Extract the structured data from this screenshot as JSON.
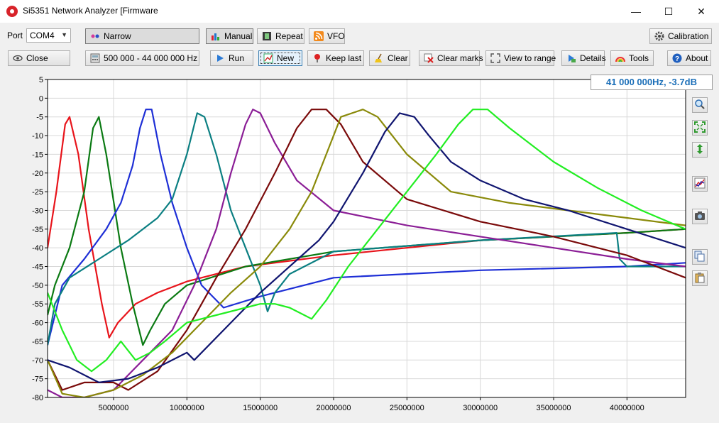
{
  "window": {
    "title": "Si5351 Network Analyzer [Firmware",
    "minimize": "—",
    "maximize": "☐",
    "close": "✕"
  },
  "toolbar": {
    "port_label": "Port",
    "port_value": "COM4",
    "narrow_label": "Narrow",
    "manual_label": "Manual",
    "repeat_label": "Repeat",
    "vfo_label": "VFO",
    "calibration_label": "Calibration",
    "close_label": "Close",
    "range_label": "500 000 - 44 000 000 Hz",
    "run_label": "Run",
    "new_label": "New",
    "keep_last_label": "Keep last",
    "clear_label": "Clear",
    "clear_marks_label": "Clear marks",
    "view_to_range_label": "View to range",
    "details_label": "Details",
    "tools_label": "Tools",
    "about_label": "About"
  },
  "readout": "41 000 000Hz, -3.7dB",
  "side_tools": [
    "zoom-icon",
    "fit-view-icon",
    "vertical-scale-icon",
    "color-chart-icon",
    "camera-icon",
    "copy-icon",
    "paste-icon"
  ],
  "chart_data": {
    "type": "line",
    "title": "",
    "xlabel": "",
    "ylabel": "",
    "xlim": [
      500000,
      44000000
    ],
    "ylim": [
      -80,
      5
    ],
    "y_ticks": [
      5,
      0,
      -5,
      -10,
      -15,
      -20,
      -25,
      -30,
      -35,
      -40,
      -45,
      -50,
      -55,
      -60,
      -65,
      -70,
      -75,
      -80
    ],
    "x_ticks": [
      5000000,
      10000000,
      15000000,
      20000000,
      25000000,
      30000000,
      35000000,
      40000000
    ],
    "grid": true,
    "series": [
      {
        "color": "#e8141b",
        "x": [
          500000,
          1100000,
          1700000,
          2000000,
          2600000,
          3300000,
          4200000,
          4700000,
          5300000,
          6500000,
          8000000,
          10000000,
          14000000,
          20000000,
          30000000,
          40000000,
          44000000
        ],
        "y": [
          -40,
          -25,
          -7,
          -5,
          -15,
          -35,
          -55,
          -64,
          -60,
          -55,
          -52,
          -49,
          -45,
          -42,
          -38,
          -36,
          -35
        ]
      },
      {
        "color": "#0b7a13",
        "x": [
          500000,
          1000000,
          2000000,
          3000000,
          3600000,
          4000000,
          4500000,
          5500000,
          6300000,
          7000000,
          7500000,
          8500000,
          10000000,
          14000000,
          20000000,
          30000000,
          40000000,
          44000000
        ],
        "y": [
          -58,
          -50,
          -40,
          -25,
          -8,
          -5,
          -15,
          -40,
          -55,
          -66,
          -62,
          -55,
          -50,
          -45,
          -41,
          -38,
          -36,
          -35
        ]
      },
      {
        "color": "#1e2fd6",
        "x": [
          500000,
          1500000,
          3000000,
          4500000,
          5500000,
          6300000,
          6800000,
          7200000,
          7600000,
          8200000,
          9000000,
          10000000,
          11000000,
          12500000,
          15000000,
          20000000,
          30000000,
          40000000,
          44000000
        ],
        "y": [
          -66,
          -50,
          -43,
          -35,
          -28,
          -18,
          -8,
          -3,
          -3,
          -15,
          -28,
          -40,
          -50,
          -56,
          -53,
          -48,
          -46,
          -45,
          -44
        ]
      },
      {
        "color": "#0b7f82",
        "x": [
          500000,
          1000000,
          2000000,
          4000000,
          6000000,
          8000000,
          9000000,
          10000000,
          10700000,
          11200000,
          12000000,
          13000000,
          14000000,
          15000000,
          15500000,
          16000000,
          17000000,
          20000000,
          30000000,
          39300000,
          39500000,
          40000000,
          44000000
        ],
        "y": [
          -66,
          -55,
          -48,
          -43,
          -38,
          -32,
          -27,
          -15,
          -4,
          -5,
          -15,
          -30,
          -40,
          -50,
          -57,
          -52,
          -47,
          -41,
          -38,
          -36,
          -43,
          -45,
          -45
        ]
      },
      {
        "color": "#8b1e96",
        "x": [
          500000,
          1500000,
          3000000,
          5000000,
          7000000,
          9000000,
          10500000,
          12000000,
          13000000,
          14000000,
          14500000,
          15000000,
          16000000,
          17500000,
          20000000,
          25000000,
          30000000,
          35000000,
          40000000,
          44000000
        ],
        "y": [
          -78,
          -80,
          -80,
          -78,
          -70,
          -62,
          -50,
          -35,
          -20,
          -7,
          -3,
          -4,
          -12,
          -22,
          -30,
          -34,
          -37,
          -40,
          -43,
          -45
        ]
      },
      {
        "color": "#7a0a0a",
        "x": [
          500000,
          1500000,
          3000000,
          5000000,
          6000000,
          8000000,
          10000000,
          12000000,
          14000000,
          16000000,
          17500000,
          18500000,
          19500000,
          20500000,
          22000000,
          25000000,
          30000000,
          35000000,
          40000000,
          44000000
        ],
        "y": [
          -70,
          -78,
          -76,
          -76,
          -78,
          -73,
          -62,
          -48,
          -35,
          -20,
          -8,
          -3,
          -3,
          -7,
          -17,
          -27,
          -33,
          -37,
          -42,
          -48
        ]
      },
      {
        "color": "#8a8a0a",
        "x": [
          500000,
          1500000,
          3000000,
          5000000,
          7000000,
          9000000,
          11000000,
          13000000,
          15000000,
          17000000,
          18500000,
          19500000,
          20500000,
          22000000,
          23000000,
          25000000,
          28000000,
          32000000,
          36000000,
          40000000,
          44000000
        ],
        "y": [
          -70,
          -79,
          -80,
          -78,
          -74,
          -68,
          -60,
          -52,
          -45,
          -35,
          -25,
          -15,
          -5,
          -3,
          -5,
          -15,
          -25,
          -28,
          -30,
          -32,
          -34
        ]
      },
      {
        "color": "#101570",
        "x": [
          500000,
          2000000,
          4000000,
          6000000,
          8000000,
          10000000,
          10500000,
          11000000,
          13000000,
          15000000,
          17000000,
          19000000,
          20000000,
          22000000,
          23500000,
          24500000,
          25500000,
          26500000,
          28000000,
          30000000,
          33000000,
          36000000,
          40000000,
          44000000
        ],
        "y": [
          -70,
          -72,
          -76,
          -75,
          -72,
          -68,
          -70,
          -68,
          -60,
          -52,
          -45,
          -38,
          -33,
          -20,
          -9,
          -4,
          -5,
          -10,
          -17,
          -22,
          -27,
          -30,
          -35,
          -40
        ]
      },
      {
        "color": "#22ee22",
        "x": [
          500000,
          1500000,
          2500000,
          3500000,
          4500000,
          5500000,
          6500000,
          7500000,
          8500000,
          10000000,
          12000000,
          14000000,
          15000000,
          16000000,
          17000000,
          18000000,
          18500000,
          19500000,
          21000000,
          23000000,
          25000000,
          27000000,
          28500000,
          29500000,
          30500000,
          32000000,
          35000000,
          38000000,
          41000000,
          44000000
        ],
        "y": [
          -52,
          -62,
          -70,
          -73,
          -70,
          -65,
          -70,
          -68,
          -65,
          -60,
          -58,
          -56,
          -55,
          -55,
          -56,
          -58,
          -59,
          -54,
          -45,
          -35,
          -25,
          -15,
          -7,
          -3,
          -3,
          -8,
          -17,
          -24,
          -30,
          -35
        ]
      }
    ]
  }
}
